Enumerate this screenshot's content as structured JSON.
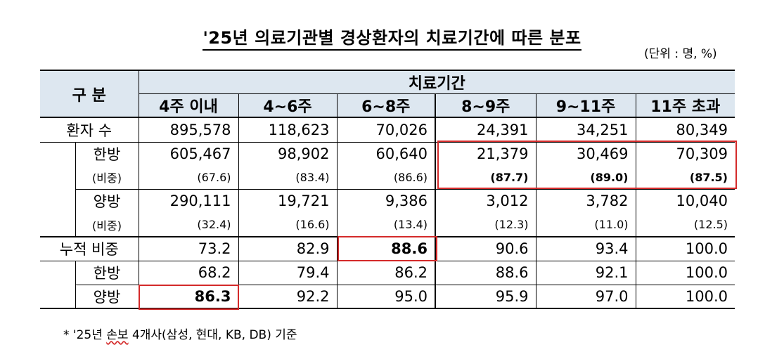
{
  "title": "'25년 의료기관별 경상환자의 치료기간에 따른 분포",
  "unit": "(단위 : 명, %)",
  "header": {
    "category": "구  분",
    "period_group": "치료기간",
    "columns": [
      "4주 이내",
      "4~6주",
      "6~8주",
      "8~9주",
      "9~11주",
      "11주 초과"
    ]
  },
  "rows": [
    {
      "label": "환자 수",
      "values": [
        "895,578",
        "118,623",
        "70,026",
        "24,391",
        "34,251",
        "80,349"
      ]
    },
    {
      "label": "한방",
      "values": [
        "605,467",
        "98,902",
        "60,640",
        "21,379",
        "30,469",
        "70,309"
      ]
    },
    {
      "label": "(비중)",
      "values": [
        "(67.6)",
        "(83.4)",
        "(86.6)",
        "(87.7)",
        "(89.0)",
        "(87.5)"
      ]
    },
    {
      "label": "양방",
      "values": [
        "290,111",
        "19,721",
        "9,386",
        "3,012",
        "3,782",
        "10,040"
      ]
    },
    {
      "label": "(비중)",
      "values": [
        "(32.4)",
        "(16.6)",
        "(13.4)",
        "(12.3)",
        "(11.0)",
        "(12.5)"
      ]
    },
    {
      "label": "누적 비중",
      "values": [
        "73.2",
        "82.9",
        "88.6",
        "90.6",
        "93.4",
        "100.0"
      ]
    },
    {
      "label": "한방",
      "values": [
        "68.2",
        "79.4",
        "86.2",
        "88.6",
        "92.1",
        "100.0"
      ]
    },
    {
      "label": "양방",
      "values": [
        "86.3",
        "92.2",
        "95.0",
        "95.9",
        "97.0",
        "100.0"
      ]
    }
  ],
  "footnote": {
    "prefix": "* '25년 ",
    "wavy": "손보",
    "suffix": " 4개사(삼성, 현대, KB, DB) 기준"
  },
  "colors": {
    "header_bg": "#dde7f0",
    "highlight_border": "#d42a2a"
  }
}
